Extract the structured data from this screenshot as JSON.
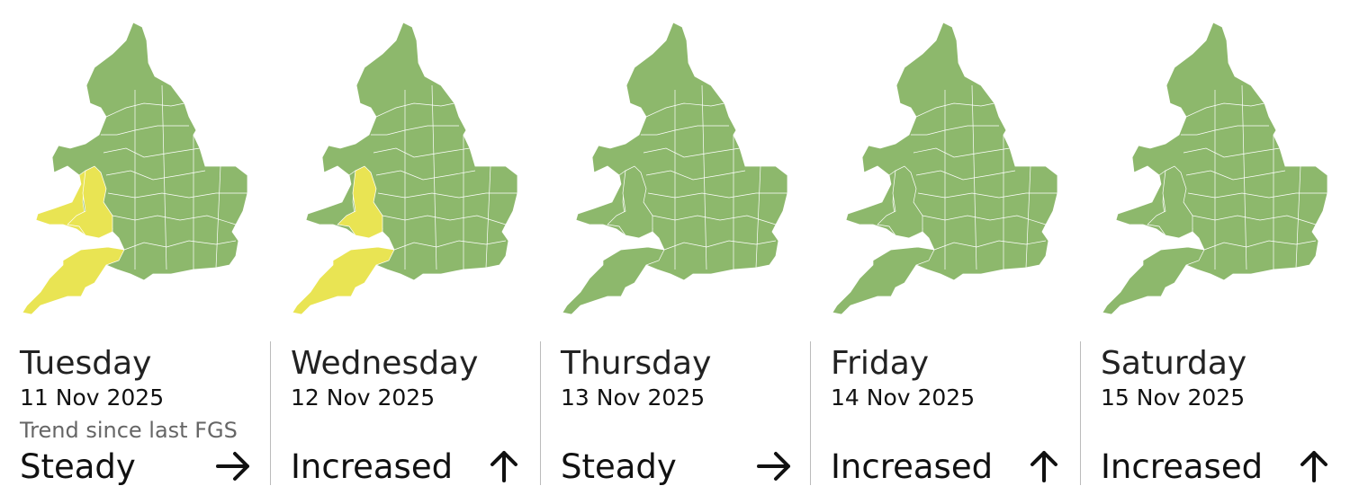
{
  "colors": {
    "green": "#8db86c",
    "yellow": "#e9e453",
    "borders": "#ffffff"
  },
  "trend_label": "Trend since last FGS",
  "days": [
    {
      "day": "Tuesday",
      "date": "11 Nov 2025",
      "trend": "Steady",
      "trend_icon": "arrow-right-icon",
      "wales_sw": "yellow",
      "wales_mid": "yellow",
      "south_west": "yellow"
    },
    {
      "day": "Wednesday",
      "date": "12 Nov 2025",
      "trend": "Increased",
      "trend_icon": "arrow-up-icon",
      "wales_sw": "green",
      "wales_mid": "yellow",
      "south_west": "yellow"
    },
    {
      "day": "Thursday",
      "date": "13 Nov 2025",
      "trend": "Steady",
      "trend_icon": "arrow-right-icon",
      "wales_sw": "green",
      "wales_mid": "green",
      "south_west": "green"
    },
    {
      "day": "Friday",
      "date": "14 Nov 2025",
      "trend": "Increased",
      "trend_icon": "arrow-up-icon",
      "wales_sw": "green",
      "wales_mid": "green",
      "south_west": "green"
    },
    {
      "day": "Saturday",
      "date": "15 Nov 2025",
      "trend": "Increased",
      "trend_icon": "arrow-up-icon",
      "wales_sw": "green",
      "wales_mid": "green",
      "south_west": "green"
    }
  ]
}
